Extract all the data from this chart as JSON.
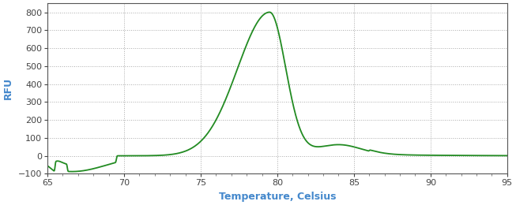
{
  "xlabel": "Temperature, Celsius",
  "ylabel": "RFU",
  "xlim": [
    65,
    95
  ],
  "ylim": [
    -100,
    850
  ],
  "xticks": [
    65,
    70,
    75,
    80,
    85,
    90,
    95
  ],
  "yticks": [
    -100,
    0,
    100,
    200,
    300,
    400,
    500,
    600,
    700,
    800
  ],
  "line_color": "#228B22",
  "line_width": 1.3,
  "background_color": "#ffffff",
  "label_color": "#4488cc",
  "tick_color": "#444444",
  "xlabel_fontsize": 9,
  "ylabel_fontsize": 9,
  "tick_fontsize": 8,
  "grid_color": "#aaaaaa",
  "grid_linestyle": ":",
  "grid_linewidth": 0.7
}
